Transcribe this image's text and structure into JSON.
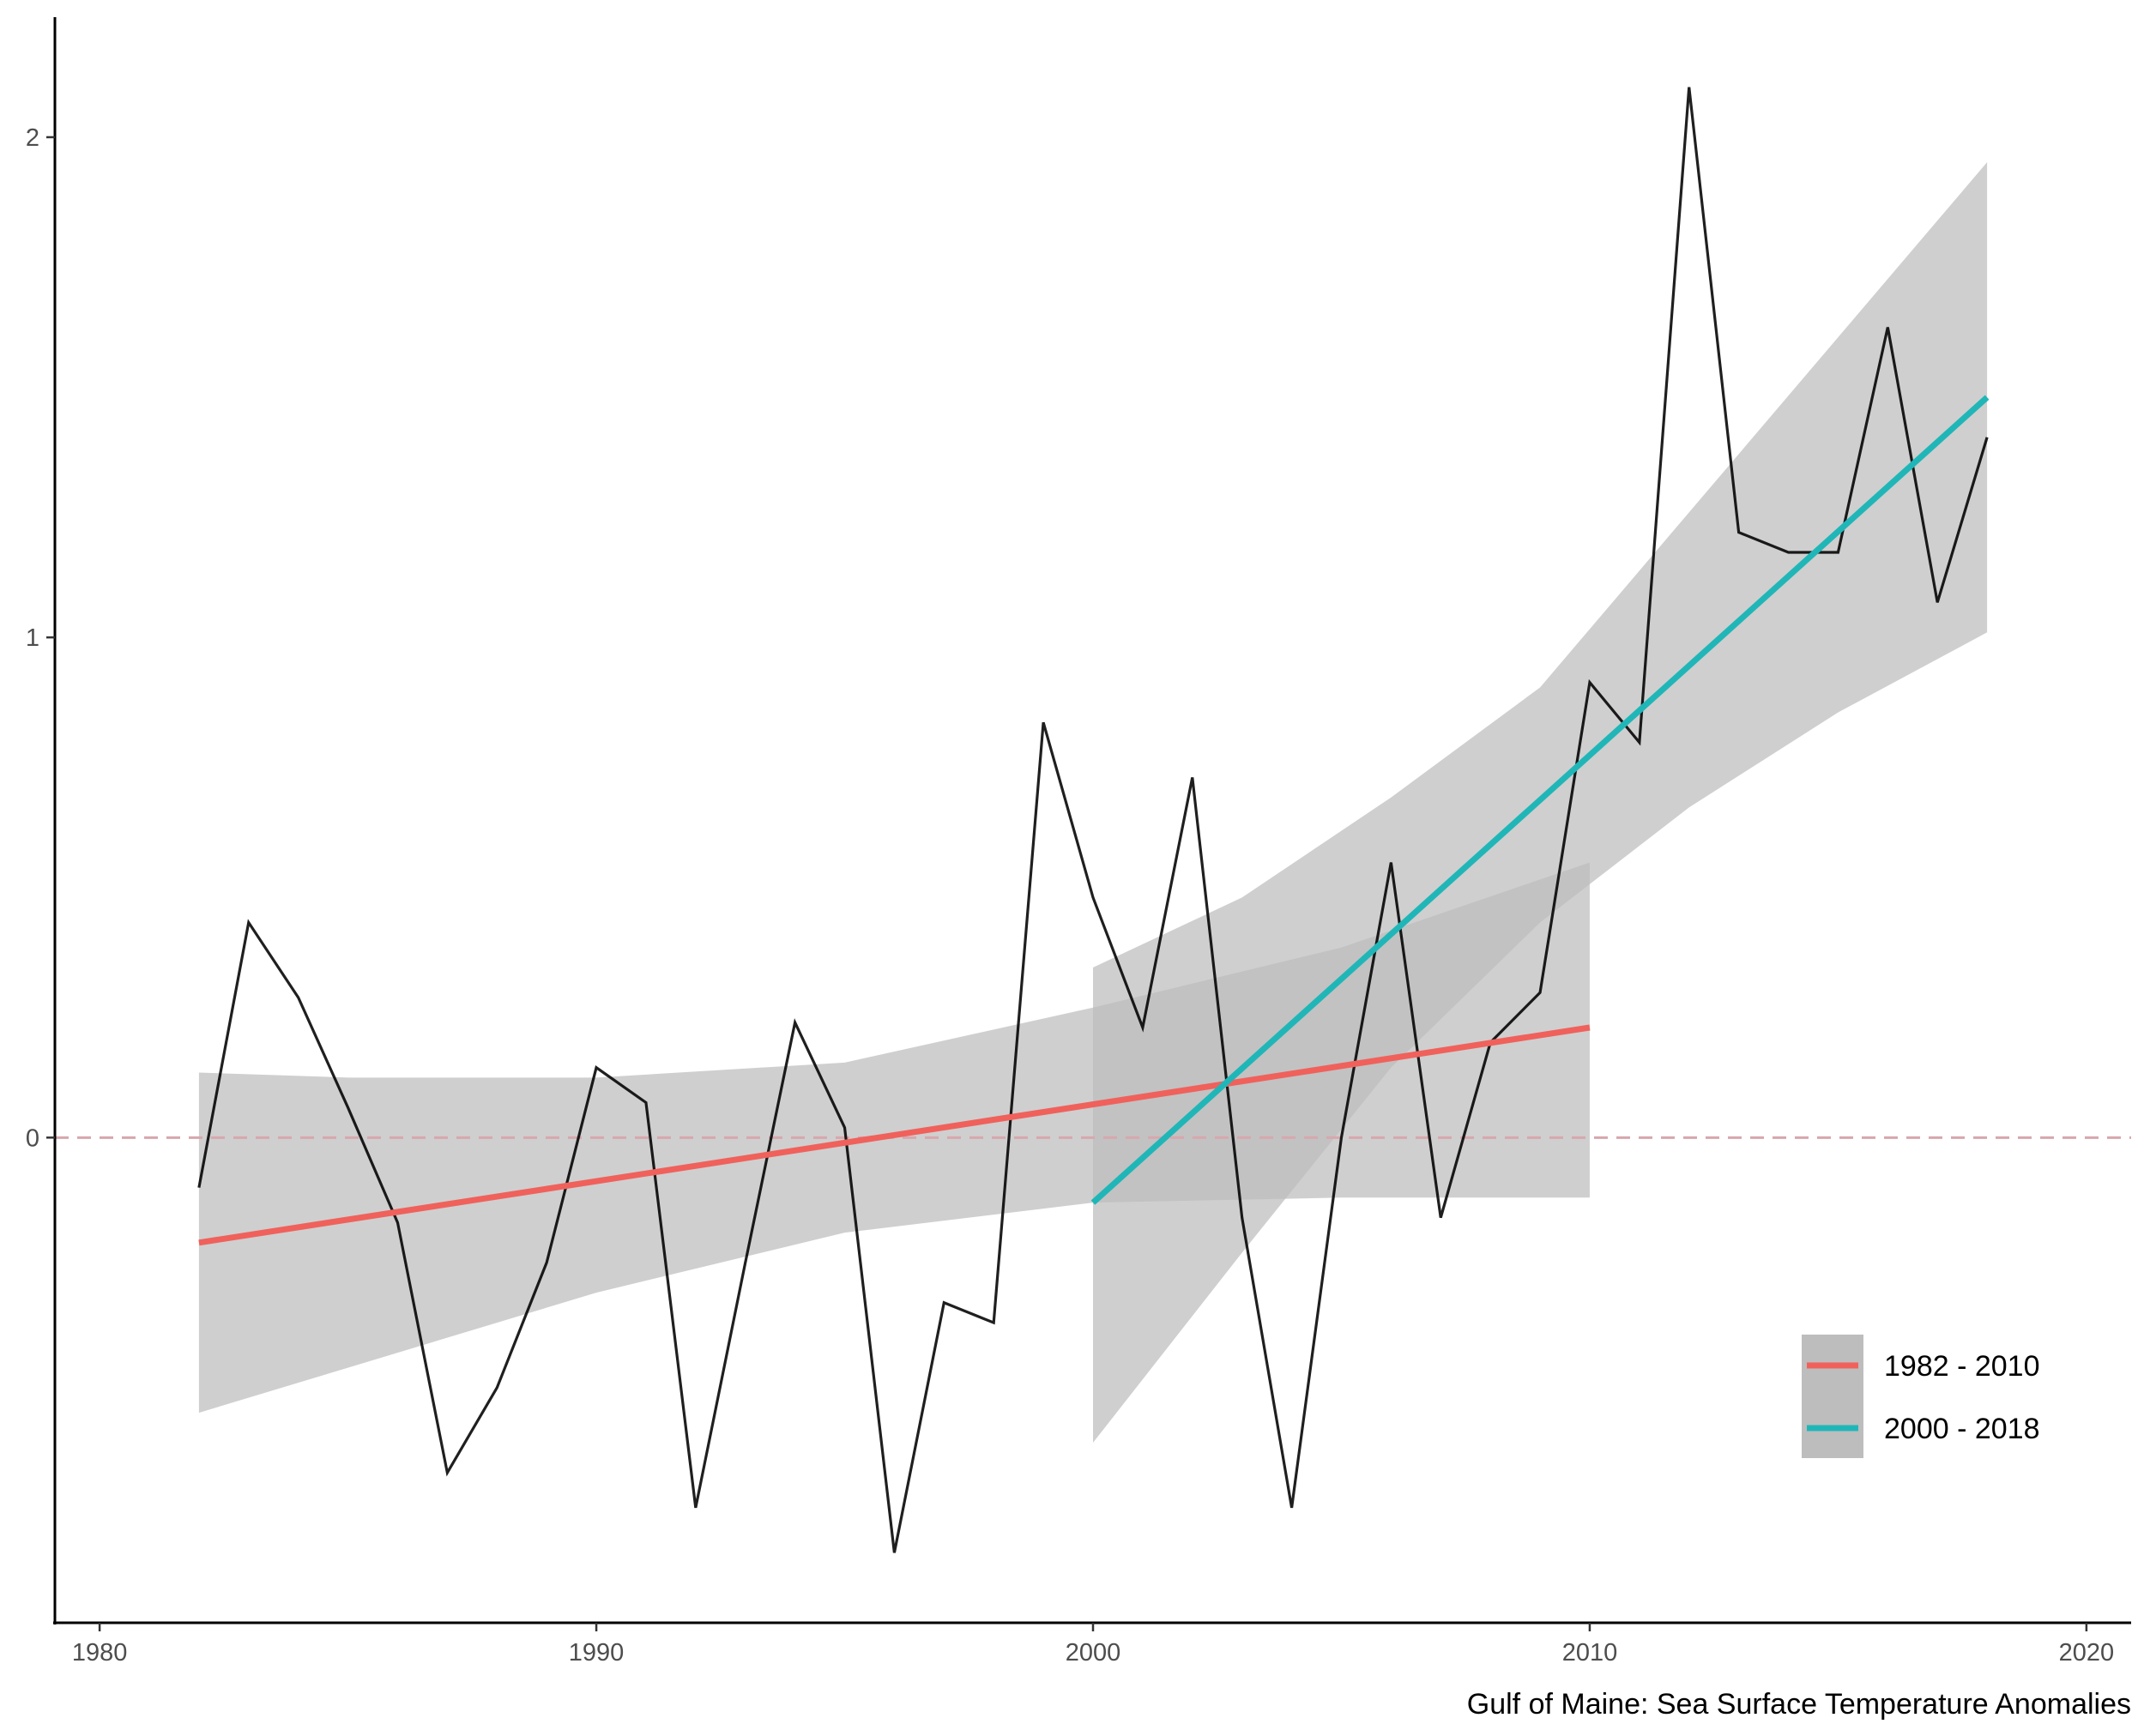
{
  "chart_data": {
    "type": "line",
    "title": "",
    "xlabel": "",
    "ylabel": "",
    "caption": "Gulf of Maine: Sea Surface Temperature Anomalies",
    "xlim": [
      1979.1,
      2020.9
    ],
    "ylim": [
      -0.97,
      2.24
    ],
    "x_ticks": [
      1980,
      1990,
      2000,
      2010,
      2020
    ],
    "y_ticks": [
      0,
      1,
      2
    ],
    "reference_line": {
      "y": 0,
      "style": "dashed",
      "color": "#d8a7ad"
    },
    "anomaly_series": {
      "color": "#000000",
      "x": [
        1982,
        1983,
        1984,
        1985,
        1986,
        1987,
        1988,
        1989,
        1990,
        1991,
        1992,
        1993,
        1994,
        1995,
        1996,
        1997,
        1998,
        1999,
        2000,
        2001,
        2002,
        2003,
        2004,
        2005,
        2006,
        2007,
        2008,
        2009,
        2010,
        2011,
        2012,
        2013,
        2014,
        2015,
        2016,
        2017,
        2018
      ],
      "y": [
        -0.1,
        0.43,
        0.28,
        0.06,
        -0.17,
        -0.67,
        -0.5,
        -0.25,
        0.14,
        0.07,
        -0.74,
        -0.25,
        0.23,
        0.02,
        -0.83,
        -0.33,
        -0.37,
        0.83,
        0.48,
        0.22,
        0.72,
        -0.16,
        -0.74,
        0.0,
        0.55,
        -0.16,
        0.19,
        0.29,
        0.91,
        0.79,
        2.1,
        1.21,
        1.17,
        1.17,
        1.62,
        1.07,
        1.4
      ]
    },
    "trends": [
      {
        "name": "1982 - 2010",
        "color": "#f0615c",
        "x": [
          1982,
          2010
        ],
        "fit": [
          -0.21,
          0.22
        ],
        "band_x": [
          1982,
          1985,
          1990,
          1995,
          2000,
          2005,
          2010
        ],
        "band_lower": [
          -0.55,
          -0.46,
          -0.31,
          -0.19,
          -0.13,
          -0.12,
          -0.12
        ],
        "band_upper": [
          0.13,
          0.12,
          0.12,
          0.15,
          0.26,
          0.38,
          0.55
        ]
      },
      {
        "name": "2000 - 2018",
        "color": "#20b6b8",
        "x": [
          2000,
          2018
        ],
        "fit": [
          -0.13,
          1.48
        ],
        "band_x": [
          2000,
          2003,
          2006,
          2009,
          2012,
          2015,
          2018
        ],
        "band_lower": [
          -0.61,
          -0.23,
          0.14,
          0.43,
          0.66,
          0.85,
          1.01
        ],
        "band_upper": [
          0.34,
          0.48,
          0.68,
          0.9,
          1.25,
          1.6,
          1.95
        ]
      }
    ],
    "band_color": "#bdbdbd",
    "legend_position": "bottom-right",
    "legend_items": [
      {
        "label": "1982 - 2010",
        "color": "#f0615c"
      },
      {
        "label": "2000 - 2018",
        "color": "#20b6b8"
      }
    ]
  }
}
